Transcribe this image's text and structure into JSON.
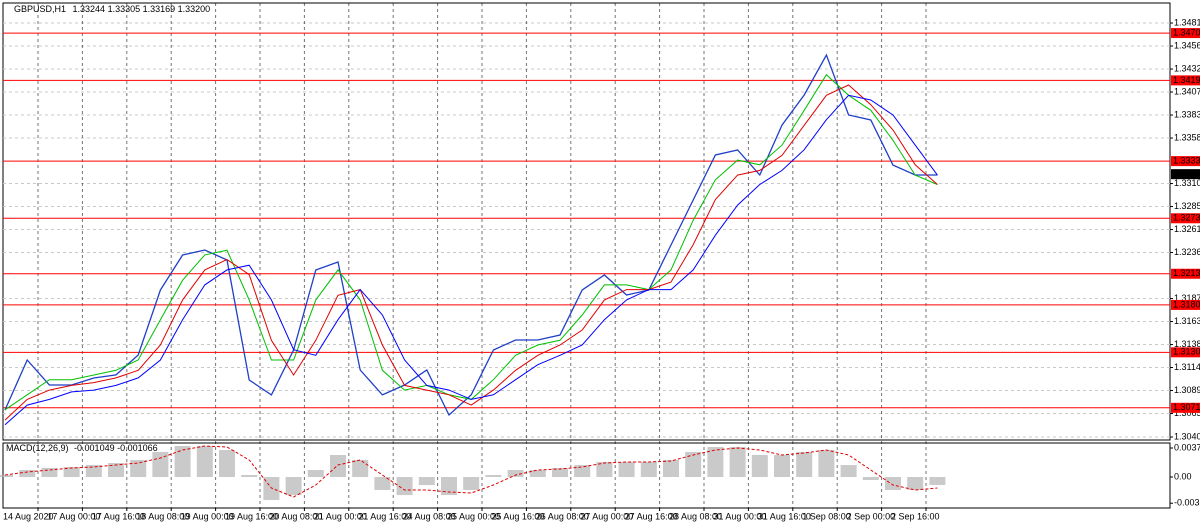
{
  "chart_data": [
    {
      "type": "line",
      "title": "GBPUSD,H1",
      "subtitle": "1.33244 1.33305 1.33169 1.33200",
      "categories": [
        "14 Aug 2020",
        null,
        "17 Aug 00:00",
        null,
        "17 Aug 16:00",
        null,
        "18 Aug 08:00",
        null,
        "19 Aug 00:00",
        null,
        "19 Aug 16:00",
        null,
        "20 Aug 08:00",
        null,
        "21 Aug 00:00",
        null,
        "21 Aug 16:00",
        null,
        "24 Aug 08:00",
        null,
        "25 Aug 00:00",
        null,
        "25 Aug 16:00",
        null,
        "26 Aug 08:00",
        null,
        "27 Aug 00:00",
        null,
        "27 Aug 16:00",
        null,
        "28 Aug 08:00",
        null,
        "31 Aug 00:00",
        null,
        "31 Aug 16:00",
        null,
        "1 Sep 08:00",
        null,
        "2 Sep 00:00",
        null,
        "2 Sep 16:00",
        null,
        null
      ],
      "series": [
        {
          "color": "#1f3fc8",
          "values": [
            1.30688,
            1.3122,
            1.30954,
            1.30954,
            1.31029,
            1.31061,
            1.31274,
            1.31966,
            1.32339,
            1.32392,
            1.32286,
            1.31007,
            1.30848,
            1.31327,
            1.32179,
            1.32264,
            1.31114,
            1.30848,
            1.30954,
            1.31114,
            1.30634,
            1.30848,
            1.31327,
            1.31433,
            1.31433,
            1.31487,
            1.31966,
            1.32126,
            1.31913,
            1.31966,
            1.32445,
            1.32925,
            1.33404,
            1.33457,
            1.33191,
            1.33723,
            1.34043,
            1.34469,
            1.3383,
            1.33777,
            1.33297,
            1.33191,
            1.33191
          ]
        },
        {
          "color": "#00c000",
          "values": [
            1.3069,
            1.3085,
            1.3101,
            1.3101,
            1.3106,
            1.3111,
            1.3122,
            1.3165,
            1.3207,
            1.3234,
            1.3239,
            1.3186,
            1.3122,
            1.3122,
            1.3186,
            1.3218,
            1.3186,
            1.3111,
            1.309,
            1.3095,
            1.3085,
            1.308,
            1.3101,
            1.3127,
            1.3138,
            1.3143,
            1.317,
            1.3202,
            1.3202,
            1.3197,
            1.3218,
            1.3271,
            1.3314,
            1.3335,
            1.333,
            1.3351,
            1.3388,
            1.3426,
            1.3404,
            1.3388,
            1.3356,
            1.3319,
            1.3309
          ]
        },
        {
          "color": "#e00000",
          "values": [
            1.3058,
            1.308,
            1.309,
            1.3095,
            1.3098,
            1.3103,
            1.3111,
            1.3138,
            1.3186,
            1.3218,
            1.3229,
            1.3213,
            1.3143,
            1.3106,
            1.3143,
            1.3191,
            1.3197,
            1.3138,
            1.3095,
            1.309,
            1.3085,
            1.3074,
            1.309,
            1.3111,
            1.3127,
            1.3138,
            1.3154,
            1.3186,
            1.3197,
            1.3197,
            1.3205,
            1.3245,
            1.3293,
            1.3319,
            1.3324,
            1.334,
            1.3372,
            1.3404,
            1.3415,
            1.3394,
            1.3367,
            1.333,
            1.3309
          ]
        },
        {
          "color": "#0000ff",
          "values": [
            1.3053,
            1.3074,
            1.308,
            1.3088,
            1.309,
            1.3095,
            1.3103,
            1.3122,
            1.3165,
            1.3202,
            1.3218,
            1.3223,
            1.3186,
            1.3133,
            1.3127,
            1.3165,
            1.3197,
            1.317,
            1.3122,
            1.3095,
            1.309,
            1.308,
            1.3085,
            1.3101,
            1.3117,
            1.3127,
            1.3138,
            1.3165,
            1.3186,
            1.3197,
            1.3197,
            1.3218,
            1.3255,
            1.3287,
            1.3309,
            1.3324,
            1.3346,
            1.3378,
            1.3404,
            1.3399,
            1.3383,
            1.3351,
            1.3319
          ]
        }
      ],
      "ylim": [
        1.30368,
        1.35002
      ],
      "yticks": [
        {
          "value": 1.3481,
          "label": "1.34810"
        },
        {
          "value": 1.34565,
          "label": "1.34565"
        },
        {
          "value": 1.3432,
          "label": "1.34320"
        },
        {
          "value": 1.34075,
          "label": "1.34075"
        },
        {
          "value": 1.3383,
          "label": "1.33830"
        },
        {
          "value": 1.33585,
          "label": "1.33585"
        },
        {
          "value": 1.331,
          "label": "1.33100"
        },
        {
          "value": 1.32855,
          "label": "1.32855"
        },
        {
          "value": 1.3261,
          "label": "1.32610"
        },
        {
          "value": 1.32365,
          "label": "1.32365"
        },
        {
          "value": 1.31875,
          "label": "1.31875"
        },
        {
          "value": 1.3163,
          "label": "1.31630"
        },
        {
          "value": 1.31385,
          "label": "1.31385"
        },
        {
          "value": 1.3114,
          "label": "1.31140"
        },
        {
          "value": 1.30895,
          "label": "1.30895"
        },
        {
          "value": 1.3065,
          "label": "1.30650"
        },
        {
          "value": 1.304,
          "label": "1.30400"
        }
      ],
      "levels": [
        {
          "value": 1.34703,
          "label": "1.34703"
        },
        {
          "value": 1.34199,
          "label": "1.34199"
        },
        {
          "value": 1.33339,
          "label": "1.33339"
        },
        {
          "value": 1.3273,
          "label": "1.32730"
        },
        {
          "value": 1.32139,
          "label": "1.32139"
        },
        {
          "value": 1.31807,
          "label": "1.31807"
        },
        {
          "value": 1.31302,
          "label": "1.31302"
        },
        {
          "value": 1.30711,
          "label": "1.30711"
        }
      ],
      "level_color": "#ff0000",
      "current_price": {
        "value": 1.332,
        "label": "1.33200"
      },
      "grid": true
    },
    {
      "type": "bar",
      "title": "MACD(12,26,9)",
      "subtitle": "-0.001049 -0.001066",
      "values": [
        0.00026,
        0.0009,
        0.00116,
        0.00129,
        0.00154,
        0.0018,
        0.00219,
        0.00322,
        0.00399,
        0.00399,
        0.00347,
        0.00026,
        -0.00296,
        -0.00232,
        0.0009,
        0.00283,
        0.00219,
        -0.00167,
        -0.00232,
        -0.00103,
        -0.00232,
        -0.00167,
        0.00026,
        0.0009,
        0.0009,
        0.00116,
        0.00154,
        0.00193,
        0.00193,
        0.00193,
        0.00219,
        0.00322,
        0.00386,
        0.00386,
        0.00283,
        0.00283,
        0.00322,
        0.00347,
        0.00154,
        -0.00039,
        -0.00167,
        -0.00167,
        -0.00103
      ],
      "color": "#b4b4b4",
      "series": [
        {
          "color": "#e00000",
          "values": [
            0.00026,
            0.00064,
            0.0009,
            0.00116,
            0.00129,
            0.00154,
            0.0018,
            0.00244,
            0.00347,
            0.00399,
            0.00386,
            0.00219,
            -0.00142,
            -0.00257,
            -0.00103,
            0.00154,
            0.00219,
            0.00026,
            -0.00167,
            -0.00167,
            -0.00193,
            -0.00206,
            -0.00103,
            0.00026,
            0.0009,
            0.00103,
            0.00129,
            0.0018,
            0.00193,
            0.00193,
            0.00206,
            0.00283,
            0.00347,
            0.00373,
            0.00347,
            0.00283,
            0.00309,
            0.00347,
            0.00283,
            0.0009,
            -0.00103,
            -0.00167,
            -0.00142
          ]
        }
      ],
      "ylim": [
        -0.003989,
        0.004375
      ],
      "yticks": [
        0.003732,
        {
          "value": 0,
          "label": "0.00"
        },
        -0.003376
      ]
    }
  ]
}
